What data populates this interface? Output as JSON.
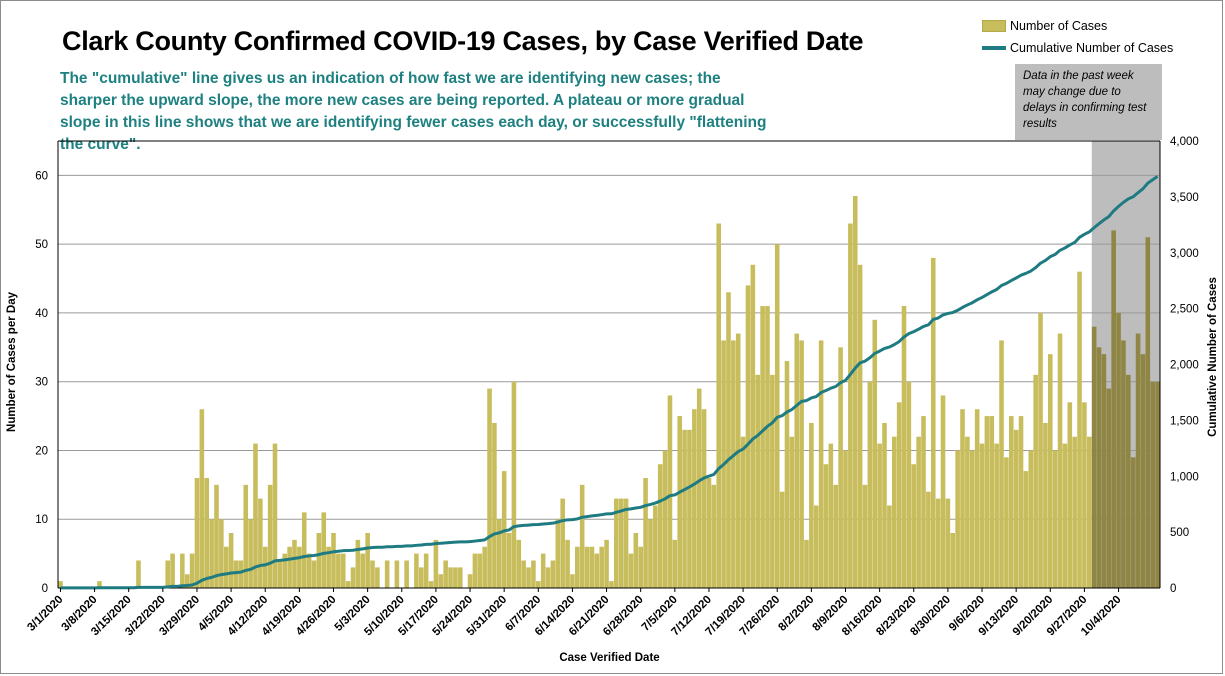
{
  "title": "Clark County Confirmed COVID-19 Cases, by Case Verified Date",
  "subtitle": "The \"cumulative\" line gives  us an indication of how fast we are identifying new cases; the sharper the upward slope, the more new cases are being reported. A plateau or more gradual slope in this line shows that we are identifying fewer cases each day, or successfully \"flattening the curve\".",
  "note": "Data in the past week may change due to delays in confirming test results",
  "colors": {
    "bar": "#c8bd5d",
    "bar_shaded": "#8f8545",
    "line": "#1f7b82",
    "shade": "#bdbdbd",
    "grid": "#9a9a9a"
  },
  "chart_data": {
    "type": "bar",
    "title": "Clark County Confirmed COVID-19 Cases, by Case Verified Date",
    "xlabel": "Case Verified Date",
    "ylabel": "Number of Cases per Day",
    "y2label": "Cumulative Number of Cases",
    "start_date": "3/1/2020",
    "end_date": "10/5/2020",
    "ylim": [
      0,
      65
    ],
    "y2lim": [
      0,
      4000
    ],
    "y_ticks": [
      0,
      10,
      20,
      30,
      40,
      50,
      60
    ],
    "y2_ticks": [
      "0",
      "500",
      "1,000",
      "1,500",
      "2,000",
      "2,500",
      "3,000",
      "3,500",
      "4,000"
    ],
    "x_tick_labels": [
      "3/1/2020",
      "3/8/2020",
      "3/15/2020",
      "3/22/2020",
      "3/29/2020",
      "4/5/2020",
      "4/12/2020",
      "4/19/2020",
      "4/26/2020",
      "5/3/2020",
      "5/10/2020",
      "5/17/2020",
      "5/24/2020",
      "5/31/2020",
      "6/7/2020",
      "6/14/2020",
      "6/21/2020",
      "6/28/2020",
      "7/5/2020",
      "7/12/2020",
      "7/19/2020",
      "7/26/2020",
      "8/2/2020",
      "8/9/2020",
      "8/16/2020",
      "8/23/2020",
      "8/30/2020",
      "9/6/2020",
      "9/13/2020",
      "9/20/2020",
      "9/27/2020",
      "10/4/2020"
    ],
    "shaded_region": {
      "from": "9/29/2020",
      "to": "10/5/2020",
      "label": "Data in the past week may change due to delays in confirming test results"
    },
    "grid": true,
    "legend": "top-right",
    "series": [
      {
        "name": "Number of Cases",
        "type": "bar",
        "values": [
          1,
          0,
          0,
          0,
          0,
          0,
          0,
          0,
          1,
          0,
          0,
          0,
          0,
          0,
          0,
          0,
          4,
          0,
          0,
          0,
          0,
          0,
          4,
          5,
          0,
          5,
          2,
          5,
          16,
          26,
          16,
          10,
          15,
          10,
          6,
          8,
          4,
          4,
          15,
          10,
          21,
          13,
          6,
          15,
          21,
          4,
          5,
          6,
          7,
          6,
          11,
          5,
          4,
          8,
          11,
          6,
          8,
          5,
          5,
          1,
          3,
          7,
          5,
          8,
          4,
          3,
          0,
          4,
          0,
          4,
          0,
          4,
          0,
          5,
          3,
          5,
          1,
          7,
          2,
          4,
          3,
          3,
          3,
          0,
          2,
          5,
          5,
          6,
          29,
          24,
          10,
          17,
          8,
          30,
          7,
          4,
          3,
          4,
          1,
          5,
          3,
          4,
          10,
          13,
          7,
          2,
          6,
          15,
          6,
          6,
          5,
          6,
          7,
          1,
          13,
          13,
          13,
          5,
          8,
          6,
          16,
          10,
          12,
          18,
          20,
          28,
          7,
          25,
          23,
          23,
          26,
          29,
          26,
          16,
          15,
          53,
          36,
          43,
          36,
          37,
          22,
          44,
          47,
          31,
          41,
          41,
          31,
          50,
          14,
          33,
          22,
          37,
          36,
          7,
          24,
          12,
          36,
          18,
          21,
          15,
          35,
          20,
          53,
          57,
          47,
          15,
          30,
          39,
          21,
          24,
          12,
          22,
          27,
          41,
          30,
          18,
          22,
          25,
          14,
          48,
          13,
          28,
          13,
          8,
          20,
          26,
          22,
          20,
          26,
          21,
          25,
          25,
          21,
          36,
          19,
          25,
          23,
          25,
          17,
          20,
          31,
          40,
          24,
          34,
          20,
          37,
          21,
          27,
          22,
          46,
          27,
          22,
          38,
          35,
          34,
          29,
          52,
          40,
          36,
          31,
          19,
          37,
          34,
          51,
          30,
          30
        ]
      },
      {
        "name": "Cumulative Number of Cases",
        "type": "line",
        "values": [
          1,
          1,
          1,
          1,
          1,
          1,
          1,
          1,
          2,
          2,
          2,
          2,
          2,
          2,
          2,
          2,
          6,
          6,
          6,
          6,
          6,
          6,
          10,
          15,
          15,
          20,
          22,
          27,
          43,
          69,
          85,
          95,
          110,
          120,
          126,
          134,
          138,
          142,
          157,
          167,
          188,
          201,
          207,
          222,
          243,
          247,
          252,
          258,
          265,
          271,
          282,
          287,
          291,
          299,
          310,
          316,
          324,
          329,
          334,
          335,
          338,
          345,
          350,
          358,
          362,
          365,
          365,
          369,
          369,
          373,
          373,
          377,
          377,
          382,
          385,
          390,
          391,
          398,
          400,
          404,
          407,
          410,
          413,
          413,
          415,
          420,
          425,
          431,
          460,
          484,
          494,
          511,
          519,
          549,
          556,
          560,
          563,
          567,
          568,
          573,
          576,
          580,
          590,
          603,
          610,
          612,
          618,
          633,
          639,
          645,
          650,
          656,
          663,
          664,
          677,
          690,
          703,
          708,
          716,
          722,
          738,
          748,
          760,
          778,
          798,
          826,
          833,
          858,
          881,
          904,
          930,
          959,
          985,
          1001,
          1016,
          1069,
          1105,
          1148,
          1184,
          1221,
          1243,
          1287,
          1334,
          1365,
          1406,
          1447,
          1478,
          1528,
          1542,
          1575,
          1597,
          1634,
          1670,
          1677,
          1701,
          1713,
          1749,
          1767,
          1788,
          1803,
          1838,
          1858,
          1911,
          1968,
          2015,
          2030,
          2060,
          2099,
          2120,
          2144,
          2156,
          2178,
          2205,
          2246,
          2276,
          2294,
          2316,
          2341,
          2355,
          2403,
          2416,
          2444,
          2457,
          2465,
          2485,
          2511,
          2533,
          2553,
          2579,
          2600,
          2625,
          2650,
          2671,
          2707,
          2726,
          2751,
          2774,
          2799,
          2816,
          2836,
          2867,
          2907,
          2931,
          2965,
          2985,
          3022,
          3043,
          3070,
          3092,
          3138,
          3165,
          3187,
          3225,
          3260,
          3294,
          3323,
          3375,
          3415,
          3451,
          3482,
          3501,
          3538,
          3572,
          3623,
          3653,
          3683
        ]
      }
    ]
  },
  "legend": {
    "bar_label": "Number of Cases",
    "line_label": "Cumulative Number of Cases"
  }
}
